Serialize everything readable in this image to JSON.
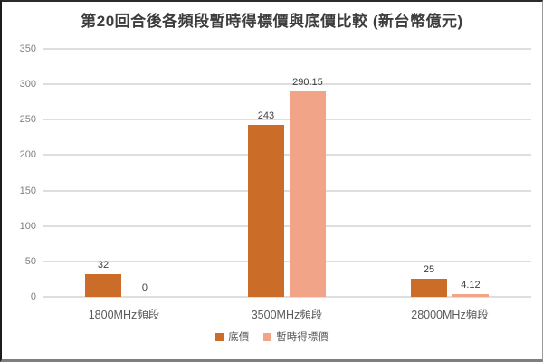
{
  "chart_data": {
    "type": "bar",
    "title": "第20回合後各頻段暫時得標價與底價比較 (新台幣億元)",
    "categories": [
      "1800MHz頻段",
      "3500MHz頻段",
      "28000MHz頻段"
    ],
    "series": [
      {
        "name": "底價",
        "color": "#cb6c28",
        "values": [
          32,
          243,
          25
        ],
        "value_labels": [
          "32",
          "243",
          "25"
        ]
      },
      {
        "name": "暫時得標價",
        "color": "#f2a489",
        "values": [
          0,
          290.15,
          4.12
        ],
        "value_labels": [
          "0",
          "290.15",
          "4.12"
        ]
      }
    ],
    "ylim": [
      0,
      350
    ],
    "yticks": [
      0,
      50,
      100,
      150,
      200,
      250,
      300,
      350
    ],
    "grid": true,
    "legend_position": "bottom"
  },
  "colors": {
    "series1": "#cb6c28",
    "series2": "#f2a489",
    "gridline": "#dedede",
    "axis_text": "#7f7f7f",
    "value_label_text": "#3f3f3f",
    "category_text": "#5a5a5a",
    "title_text": "#3d3d3d",
    "background": "#ffffff"
  }
}
